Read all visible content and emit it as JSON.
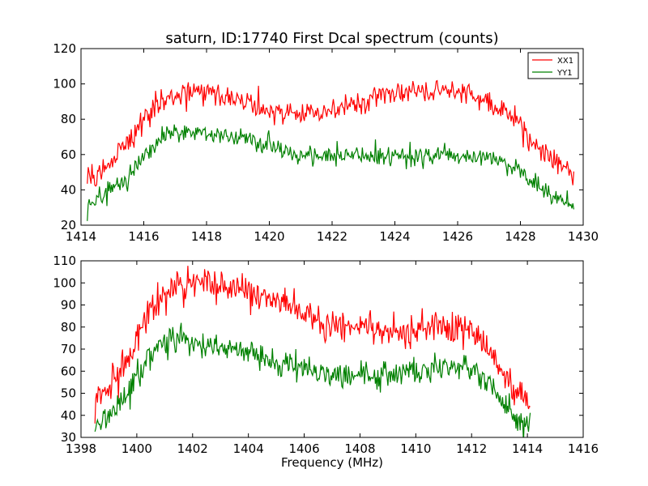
{
  "figure": {
    "title": "saturn, ID:17740 First Dcal spectrum (counts)"
  },
  "chart_data": [
    {
      "type": "line",
      "title": "saturn, ID:17740 First Dcal spectrum (counts)",
      "xlabel": "",
      "ylabel": "",
      "xlim": [
        1414,
        1430
      ],
      "ylim": [
        20,
        120
      ],
      "xticks": [
        1414,
        1416,
        1418,
        1420,
        1422,
        1424,
        1426,
        1428,
        1430
      ],
      "yticks": [
        20,
        40,
        60,
        80,
        100,
        120
      ],
      "grid": false,
      "legend": "top-right",
      "x": [
        1414.2,
        1414.6,
        1415.0,
        1415.4,
        1415.8,
        1416.2,
        1416.6,
        1417.0,
        1417.5,
        1418.0,
        1418.5,
        1419.0,
        1419.5,
        1420.0,
        1420.5,
        1421.0,
        1421.5,
        1422.0,
        1422.5,
        1423.0,
        1423.5,
        1424.0,
        1424.5,
        1425.0,
        1425.5,
        1426.0,
        1426.5,
        1427.0,
        1427.5,
        1428.0,
        1428.5,
        1429.0,
        1429.4,
        1429.7
      ],
      "series": [
        {
          "name": "XX1",
          "color": "#ff0000",
          "values": [
            48,
            50,
            58,
            66,
            74,
            83,
            90,
            94,
            96,
            96,
            94,
            92,
            88,
            86,
            84,
            83,
            83,
            85,
            88,
            90,
            92,
            94,
            95,
            96,
            96,
            95,
            93,
            90,
            85,
            77,
            66,
            57,
            52,
            48
          ]
        },
        {
          "name": "YY1",
          "color": "#008000",
          "values": [
            31,
            35,
            40,
            46,
            54,
            63,
            69,
            72,
            73,
            72,
            71,
            69,
            67,
            65,
            62,
            60,
            60,
            60,
            60,
            59,
            59,
            59,
            59,
            59,
            59,
            59,
            59,
            58,
            55,
            50,
            44,
            38,
            34,
            32
          ]
        }
      ]
    },
    {
      "type": "line",
      "xlabel": "Frequency (MHz)",
      "ylabel": "",
      "xlim": [
        1398,
        1416
      ],
      "ylim": [
        30,
        110
      ],
      "xticks": [
        1398,
        1400,
        1402,
        1404,
        1406,
        1408,
        1410,
        1412,
        1414,
        1416
      ],
      "yticks": [
        30,
        40,
        50,
        60,
        70,
        80,
        90,
        100,
        110
      ],
      "grid": false,
      "x": [
        1398.5,
        1399.0,
        1399.5,
        1400.0,
        1400.5,
        1401.0,
        1401.5,
        1402.0,
        1402.5,
        1403.0,
        1403.5,
        1404.0,
        1404.5,
        1405.0,
        1405.5,
        1406.0,
        1406.5,
        1407.0,
        1407.5,
        1408.0,
        1408.5,
        1409.0,
        1409.5,
        1410.0,
        1410.5,
        1411.0,
        1411.5,
        1412.0,
        1412.5,
        1413.0,
        1413.5,
        1414.1
      ],
      "series": [
        {
          "color": "#ff0000",
          "values": [
            47,
            52,
            61,
            75,
            88,
            96,
            99,
            100,
            99,
            98,
            97,
            96,
            94,
            92,
            90,
            87,
            84,
            82,
            81,
            80,
            78,
            77,
            77,
            78,
            79,
            80,
            80,
            78,
            72,
            62,
            52,
            45
          ]
        },
        {
          "color": "#008000",
          "values": [
            35,
            40,
            48,
            58,
            67,
            73,
            75,
            74,
            72,
            71,
            70,
            69,
            67,
            65,
            63,
            61,
            60,
            59,
            58,
            58,
            58,
            59,
            60,
            61,
            62,
            63,
            63,
            61,
            56,
            48,
            40,
            35
          ]
        }
      ]
    }
  ]
}
